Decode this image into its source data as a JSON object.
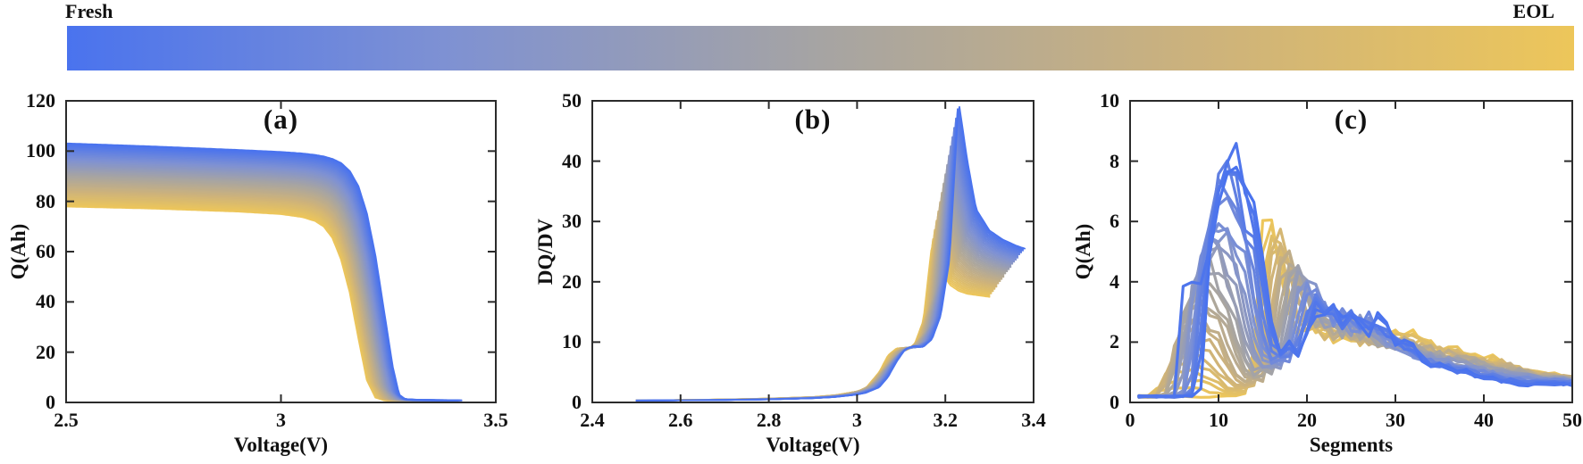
{
  "colorbar": {
    "fresh_label": "Fresh",
    "eol_label": "EOL",
    "gradient_stops": [
      "#4a73ee",
      "#7e91d3",
      "#a6a4a3",
      "#ccb27c",
      "#edc65a"
    ]
  },
  "style": {
    "axis_color": "#2b2b2b",
    "fresh_color": "#4a73ee",
    "eol_color": "#edc65a"
  },
  "chart_data": [
    {
      "id": "a",
      "type": "line",
      "title": "(a)",
      "xlabel": "Voltage(V)",
      "ylabel": "Q(Ah)",
      "xlim": [
        2.5,
        3.5
      ],
      "ylim": [
        0,
        120
      ],
      "xticks": [
        2.5,
        3,
        3.5
      ],
      "xtick_labels": [
        "2.5",
        "3",
        "3.5"
      ],
      "yticks": [
        0,
        20,
        40,
        60,
        80,
        100,
        120
      ],
      "ytick_labels": [
        "0",
        "20",
        "40",
        "60",
        "80",
        "100",
        "120"
      ],
      "grid": false,
      "legend": "none (color encodes aging: blue=Fresh to gold=EOL)",
      "n_curves": 46,
      "aging_x_shift": 0.08,
      "line_width": 2.2,
      "series": [
        {
          "name": "fresh",
          "v_end": 3.42,
          "x": [
            2.5,
            2.6,
            2.7,
            2.8,
            2.9,
            3.0,
            3.05,
            3.08,
            3.1,
            3.12,
            3.14,
            3.16,
            3.18,
            3.2,
            3.22,
            3.24,
            3.26,
            3.275,
            3.29,
            3.32,
            3.36,
            3.4,
            3.42
          ],
          "y": [
            103,
            102.4,
            101.8,
            101.1,
            100.4,
            99.6,
            99.0,
            98.4,
            97.8,
            96.8,
            95.2,
            92.0,
            86.0,
            75.0,
            58.0,
            36.0,
            14.0,
            3.0,
            1.2,
            1.0,
            0.9,
            0.85,
            0.8
          ]
        },
        {
          "name": "eol",
          "v_end": 3.3,
          "x": [
            2.5,
            2.6,
            2.7,
            2.8,
            2.9,
            3.0,
            3.05,
            3.08,
            3.1,
            3.12,
            3.14,
            3.16,
            3.18,
            3.2,
            3.22,
            3.24,
            3.26,
            3.275,
            3.29,
            3.32,
            3.36,
            3.4,
            3.42
          ],
          "y": [
            78,
            77.6,
            77.2,
            76.6,
            76.0,
            75.0,
            73.8,
            72.2,
            70.0,
            65.5,
            57.0,
            44.0,
            26.0,
            9.0,
            2.0,
            0.9,
            0.7,
            0.65,
            0.6,
            0.6,
            0.6,
            0.6,
            0.6
          ]
        }
      ]
    },
    {
      "id": "b",
      "type": "line",
      "title": "(b)",
      "xlabel": "Voltage(V)",
      "ylabel": "DQ/DV",
      "xlim": [
        2.4,
        3.4
      ],
      "ylim": [
        0,
        50
      ],
      "xticks": [
        2.4,
        2.6,
        2.8,
        3,
        3.2,
        3.4
      ],
      "xtick_labels": [
        "2.4",
        "2.6",
        "2.8",
        "3",
        "3.2",
        "3.4"
      ],
      "yticks": [
        0,
        10,
        20,
        30,
        40,
        50
      ],
      "ytick_labels": [
        "0",
        "10",
        "20",
        "30",
        "40",
        "50"
      ],
      "grid": false,
      "legend": "none (color encodes aging: blue=Fresh to gold=EOL)",
      "n_curves": 46,
      "aging_x_shift": 0.06,
      "line_width": 1.8,
      "series": [
        {
          "name": "fresh",
          "v_end": 3.38,
          "x": [
            2.5,
            2.6,
            2.7,
            2.8,
            2.9,
            2.95,
            3.0,
            3.02,
            3.05,
            3.07,
            3.09,
            3.11,
            3.13,
            3.15,
            3.17,
            3.19,
            3.21,
            3.23,
            3.25,
            3.27,
            3.3,
            3.33,
            3.36,
            3.38
          ],
          "y": [
            0.3,
            0.35,
            0.4,
            0.5,
            0.7,
            0.9,
            1.3,
            1.6,
            2.5,
            4.2,
            6.8,
            8.9,
            9.4,
            9.2,
            10.5,
            14.5,
            24.0,
            50.0,
            40.0,
            32.0,
            28.5,
            27.0,
            26.0,
            25.5
          ]
        },
        {
          "name": "eol",
          "v_end": 3.3,
          "x": [
            2.5,
            2.6,
            2.7,
            2.8,
            2.9,
            2.95,
            3.0,
            3.02,
            3.05,
            3.07,
            3.09,
            3.11,
            3.13,
            3.15,
            3.17,
            3.19,
            3.21,
            3.23,
            3.25,
            3.27,
            3.3,
            3.33,
            3.36,
            3.38
          ],
          "y": [
            0.35,
            0.4,
            0.5,
            0.65,
            0.9,
            1.2,
            1.8,
            2.4,
            5.0,
            7.8,
            9.0,
            8.6,
            9.6,
            13.5,
            26.5,
            22.0,
            19.5,
            18.5,
            18.0,
            17.8,
            17.5,
            17.5,
            17.5,
            17.5
          ]
        }
      ]
    },
    {
      "id": "c",
      "type": "line",
      "title": "(c)",
      "xlabel": "Segments",
      "ylabel": "Q(Ah)",
      "xlim": [
        0,
        50
      ],
      "ylim": [
        0,
        10
      ],
      "xticks": [
        0,
        10,
        20,
        30,
        40,
        50
      ],
      "xtick_labels": [
        "0",
        "10",
        "20",
        "30",
        "40",
        "50"
      ],
      "yticks": [
        0,
        2,
        4,
        6,
        8,
        10
      ],
      "ytick_labels": [
        "0",
        "2",
        "4",
        "6",
        "8",
        "10"
      ],
      "grid": false,
      "legend": "none (color encodes aging: blue=Fresh to gold=EOL)",
      "n_curves": 28,
      "aging_x_shift": 6,
      "jitter": 0.2,
      "line_width": 3.2,
      "series": [
        {
          "name": "fresh",
          "x": [
            1,
            2,
            3,
            4,
            5,
            6,
            7,
            8,
            9,
            10,
            11,
            12,
            13,
            14,
            15,
            16,
            17,
            18,
            19,
            20,
            21,
            22,
            23,
            24,
            25,
            26,
            27,
            28,
            29,
            30,
            31,
            32,
            33,
            34,
            35,
            36,
            37,
            38,
            39,
            40,
            41,
            42,
            43,
            44,
            45,
            46,
            47,
            48,
            49,
            50
          ],
          "y": [
            0.2,
            0.2,
            0.2,
            0.2,
            0.2,
            0.2,
            0.2,
            0.5,
            5.2,
            7.1,
            8.1,
            8.35,
            7.2,
            6.4,
            4.6,
            2.6,
            1.6,
            1.9,
            1.6,
            2.2,
            3.1,
            2.9,
            3.3,
            2.6,
            3.0,
            2.8,
            2.4,
            2.9,
            2.5,
            2.1,
            2.0,
            1.8,
            1.5,
            1.3,
            1.2,
            1.1,
            1.0,
            1.0,
            0.9,
            0.8,
            0.8,
            0.7,
            0.7,
            0.6,
            0.6,
            0.6,
            0.6,
            0.6,
            0.6,
            0.6
          ]
        },
        {
          "name": "eol",
          "x": [
            1,
            2,
            3,
            4,
            5,
            6,
            7,
            8,
            9,
            10,
            11,
            12,
            13,
            14,
            15,
            16,
            17,
            18,
            19,
            20,
            21,
            22,
            23,
            24,
            25,
            26,
            27,
            28,
            29,
            30,
            31,
            32,
            33,
            34,
            35,
            36,
            37,
            38,
            39,
            40,
            41,
            42,
            43,
            44,
            45,
            46,
            47,
            48,
            49,
            50
          ],
          "y": [
            0.2,
            0.2,
            0.2,
            0.2,
            0.2,
            0.2,
            0.2,
            0.2,
            0.2,
            0.2,
            0.2,
            0.2,
            0.3,
            2.0,
            5.5,
            5.8,
            4.2,
            2.8,
            2.4,
            2.6,
            2.2,
            2.4,
            2.1,
            2.3,
            2.0,
            2.2,
            2.4,
            2.2,
            2.5,
            2.3,
            2.1,
            2.2,
            1.9,
            2.0,
            1.8,
            1.9,
            1.7,
            1.6,
            1.5,
            1.4,
            1.5,
            1.3,
            1.2,
            1.1,
            1.0,
            1.0,
            0.9,
            0.9,
            0.8,
            0.8
          ]
        },
        {
          "name": "fresh_early_outlier",
          "x": [
            1,
            2,
            3,
            4,
            5,
            6,
            7,
            8,
            9,
            10,
            11,
            12,
            13,
            14,
            15,
            16,
            17,
            18,
            19,
            20,
            21,
            22,
            23,
            24,
            25,
            26,
            27,
            28,
            29,
            30,
            31,
            32,
            33,
            34,
            35,
            36,
            37,
            38,
            39,
            40,
            41,
            42,
            43,
            44,
            45,
            46,
            47,
            48,
            49,
            50
          ],
          "y": [
            0.2,
            0.2,
            0.2,
            0.2,
            0.2,
            4.0,
            4.1,
            3.9,
            5.2,
            7.1,
            8.1,
            8.35,
            7.2,
            6.4,
            4.6,
            2.6,
            1.6,
            1.9,
            1.6,
            2.2,
            3.1,
            2.9,
            3.3,
            2.6,
            3.0,
            2.8,
            2.4,
            2.9,
            2.5,
            2.1,
            2.0,
            1.8,
            1.5,
            1.3,
            1.2,
            1.1,
            1.0,
            1.0,
            0.9,
            0.8,
            0.8,
            0.7,
            0.7,
            0.6,
            0.6,
            0.6,
            0.6,
            0.6,
            0.6,
            0.6
          ]
        }
      ]
    }
  ]
}
